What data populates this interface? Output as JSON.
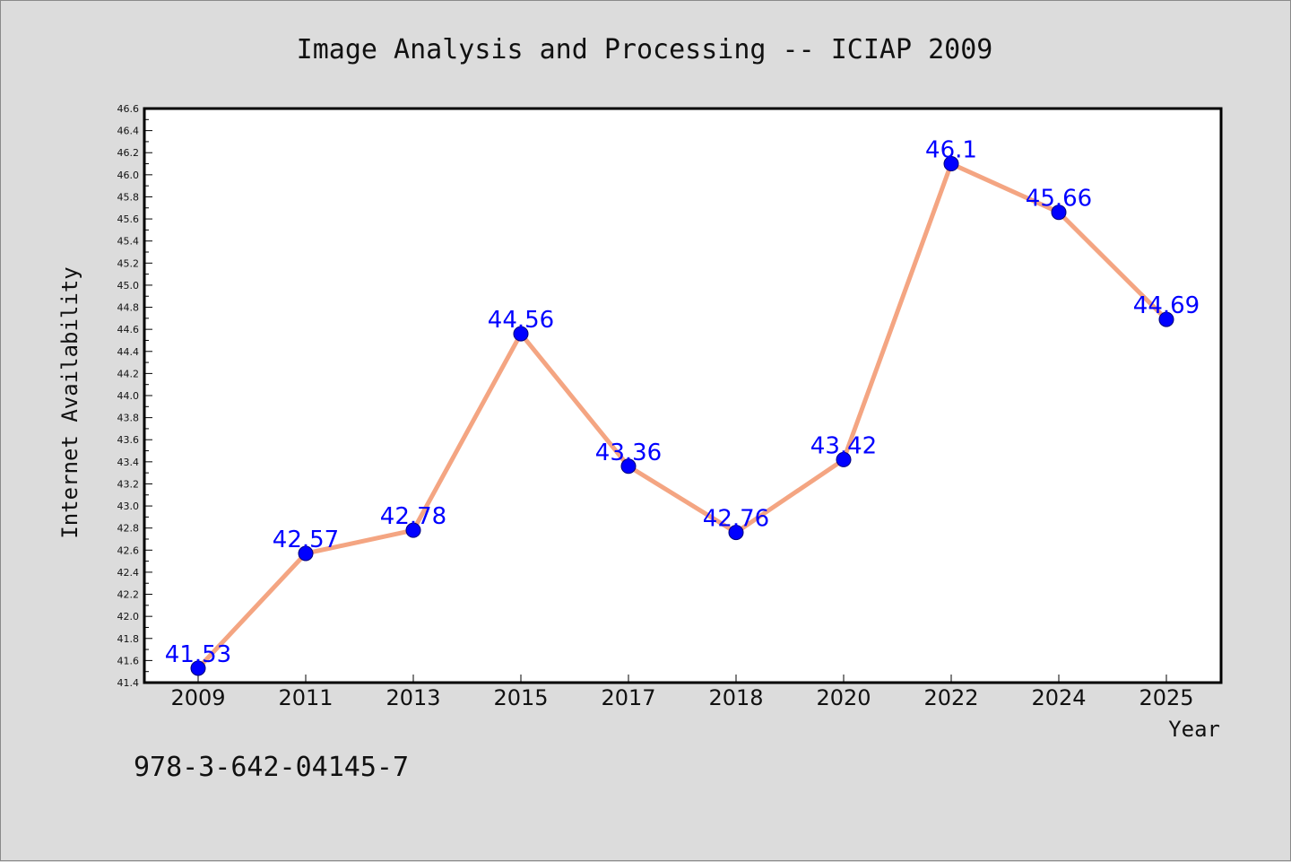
{
  "chart_data": {
    "type": "line",
    "title": "Image Analysis and Processing -- ICIAP 2009",
    "xlabel": "Year",
    "ylabel": "Internet Availability",
    "categories": [
      "2009",
      "2011",
      "2013",
      "2015",
      "2017",
      "2018",
      "2020",
      "2022",
      "2024",
      "2025"
    ],
    "series": [
      {
        "values": [
          41.53,
          42.57,
          42.78,
          44.56,
          43.36,
          42.76,
          43.42,
          46.1,
          45.66,
          44.69
        ]
      }
    ],
    "data_labels": [
      "41.53",
      "42.57",
      "42.78",
      "44.56",
      "43.36",
      "42.76",
      "43.42",
      "46.1",
      "45.66",
      "44.69"
    ],
    "ylim": [
      41.4,
      46.6
    ],
    "ytick_step": 0.2,
    "grid": false,
    "legend": false,
    "colors": {
      "line": "#f4a582",
      "marker": "#0000ff",
      "data_label": "#0000ff",
      "background": "#dcdcdc",
      "plot_background": "#ffffff"
    }
  },
  "footer_text": "978-3-642-04145-7"
}
